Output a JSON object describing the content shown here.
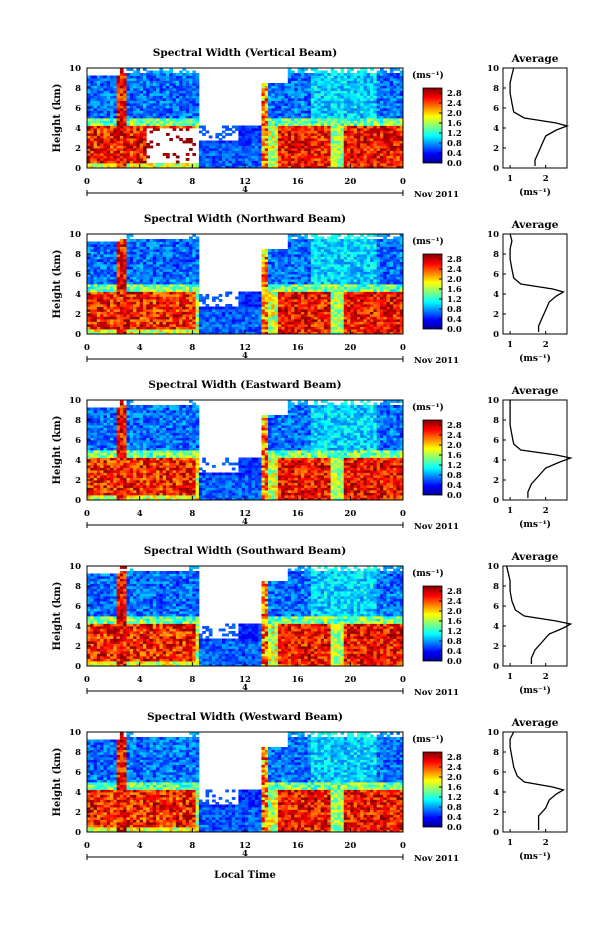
{
  "figure": {
    "xlabel": "Local Time",
    "date_label": "4",
    "month_label": "Nov 2011",
    "colorbar_unit": "(ms⁻¹)",
    "avg_title": "Average",
    "avg_xlabel": "(ms⁻¹)",
    "ylabel": "Height (km)"
  },
  "chart_data": [
    {
      "type": "heatmap",
      "title": "Spectral Width (Vertical Beam)",
      "ylabel": "Height (km)",
      "xticks": [
        "0",
        "4",
        "8",
        "12",
        "16",
        "20",
        "0"
      ],
      "yticks": [
        "0",
        "2",
        "4",
        "6",
        "8",
        "10"
      ],
      "colorbar_ticks": [
        "0.0",
        "0.4",
        "0.8",
        "1.2",
        "1.6",
        "2.0",
        "2.4",
        "2.8"
      ],
      "xlim": [
        0,
        24
      ],
      "ylim": [
        0,
        10
      ],
      "clim": [
        0,
        3.0
      ],
      "average": {
        "title": "Average",
        "xlabel": "(ms⁻¹)",
        "xticks": [
          "1",
          "2"
        ],
        "yticks": [
          "0",
          "2",
          "4",
          "6",
          "8",
          "10"
        ],
        "height": [
          0.2,
          0.8,
          1.6,
          2.4,
          3.2,
          3.8,
          4.2,
          4.5,
          5.0,
          5.6,
          6.5,
          7.5,
          8.5,
          9.3,
          10.0
        ],
        "value": [
          1.7,
          1.7,
          1.8,
          1.9,
          2.0,
          2.3,
          2.6,
          2.3,
          1.4,
          1.1,
          1.05,
          1.0,
          1.0,
          1.05,
          1.1
        ]
      }
    },
    {
      "type": "heatmap",
      "title": "Spectral Width (Northward Beam)",
      "ylabel": "Height (km)",
      "xticks": [
        "0",
        "4",
        "8",
        "12",
        "16",
        "20",
        "0"
      ],
      "yticks": [
        "0",
        "2",
        "4",
        "6",
        "8",
        "10"
      ],
      "colorbar_ticks": [
        "0.0",
        "0.4",
        "0.8",
        "1.2",
        "1.6",
        "2.0",
        "2.4",
        "2.8"
      ],
      "xlim": [
        0,
        24
      ],
      "ylim": [
        0,
        10
      ],
      "clim": [
        0,
        3.0
      ],
      "average": {
        "title": "Average",
        "xlabel": "(ms⁻¹)",
        "xticks": [
          "1",
          "2"
        ],
        "yticks": [
          "0",
          "2",
          "4",
          "6",
          "8",
          "10"
        ],
        "height": [
          0.2,
          0.8,
          1.6,
          2.4,
          3.2,
          3.8,
          4.2,
          4.5,
          5.0,
          5.6,
          6.5,
          7.5,
          8.5,
          9.3,
          10.0
        ],
        "value": [
          1.8,
          1.8,
          1.9,
          2.0,
          2.1,
          2.3,
          2.5,
          2.2,
          1.3,
          1.1,
          1.05,
          1.0,
          1.0,
          1.05,
          1.0
        ]
      }
    },
    {
      "type": "heatmap",
      "title": "Spectral Width (Eastward Beam)",
      "ylabel": "Height (km)",
      "xticks": [
        "0",
        "4",
        "8",
        "12",
        "16",
        "20",
        "0"
      ],
      "yticks": [
        "0",
        "2",
        "4",
        "6",
        "8",
        "10"
      ],
      "colorbar_ticks": [
        "0.0",
        "0.4",
        "0.8",
        "1.2",
        "1.6",
        "2.0",
        "2.4",
        "2.8"
      ],
      "xlim": [
        0,
        24
      ],
      "ylim": [
        0,
        10
      ],
      "clim": [
        0,
        3.0
      ],
      "average": {
        "title": "Average",
        "xlabel": "(ms⁻¹)",
        "xticks": [
          "1",
          "2"
        ],
        "yticks": [
          "0",
          "2",
          "4",
          "6",
          "8",
          "10"
        ],
        "height": [
          0.2,
          0.8,
          1.6,
          2.4,
          3.2,
          3.8,
          4.2,
          4.5,
          5.0,
          5.6,
          6.5,
          7.5,
          8.5,
          9.3,
          10.0
        ],
        "value": [
          1.5,
          1.5,
          1.6,
          1.8,
          2.0,
          2.4,
          2.7,
          2.3,
          1.3,
          1.1,
          1.05,
          1.0,
          1.0,
          1.0,
          1.0
        ]
      }
    },
    {
      "type": "heatmap",
      "title": "Spectral Width (Southward Beam)",
      "ylabel": "Height (km)",
      "xticks": [
        "0",
        "4",
        "8",
        "12",
        "16",
        "20",
        "0"
      ],
      "yticks": [
        "0",
        "2",
        "4",
        "6",
        "8",
        "10"
      ],
      "colorbar_ticks": [
        "0.0",
        "0.4",
        "0.8",
        "1.2",
        "1.6",
        "2.0",
        "2.4",
        "2.8"
      ],
      "xlim": [
        0,
        24
      ],
      "ylim": [
        0,
        10
      ],
      "clim": [
        0,
        3.0
      ],
      "average": {
        "title": "Average",
        "xlabel": "(ms⁻¹)",
        "xticks": [
          "1",
          "2"
        ],
        "yticks": [
          "0",
          "2",
          "4",
          "6",
          "8",
          "10"
        ],
        "height": [
          0.2,
          0.8,
          1.6,
          2.4,
          3.2,
          3.8,
          4.2,
          4.5,
          5.0,
          5.6,
          6.5,
          7.5,
          8.5,
          9.3,
          10.0
        ],
        "value": [
          1.6,
          1.6,
          1.7,
          1.9,
          2.1,
          2.5,
          2.7,
          2.3,
          1.4,
          1.15,
          1.05,
          1.0,
          1.0,
          0.95,
          0.9
        ]
      }
    },
    {
      "type": "heatmap",
      "title": "Spectral Width (Westward Beam)",
      "ylabel": "Height (km)",
      "xticks": [
        "0",
        "4",
        "8",
        "12",
        "16",
        "20",
        "0"
      ],
      "yticks": [
        "0",
        "2",
        "4",
        "6",
        "8",
        "10"
      ],
      "colorbar_ticks": [
        "0.0",
        "0.4",
        "0.8",
        "1.2",
        "1.6",
        "2.0",
        "2.4",
        "2.8"
      ],
      "xlim": [
        0,
        24
      ],
      "ylim": [
        0,
        10
      ],
      "clim": [
        0,
        3.0
      ],
      "average": {
        "title": "Average",
        "xlabel": "(ms⁻¹)",
        "xticks": [
          "1",
          "2"
        ],
        "yticks": [
          "0",
          "2",
          "4",
          "6",
          "8",
          "10"
        ],
        "height": [
          0.2,
          0.8,
          1.6,
          2.4,
          3.2,
          3.8,
          4.2,
          4.5,
          5.0,
          5.6,
          6.5,
          7.5,
          8.5,
          9.3,
          10.0
        ],
        "value": [
          1.8,
          1.8,
          1.8,
          2.0,
          2.1,
          2.3,
          2.5,
          2.2,
          1.4,
          1.2,
          1.1,
          1.05,
          1.0,
          1.0,
          1.1
        ]
      }
    }
  ]
}
